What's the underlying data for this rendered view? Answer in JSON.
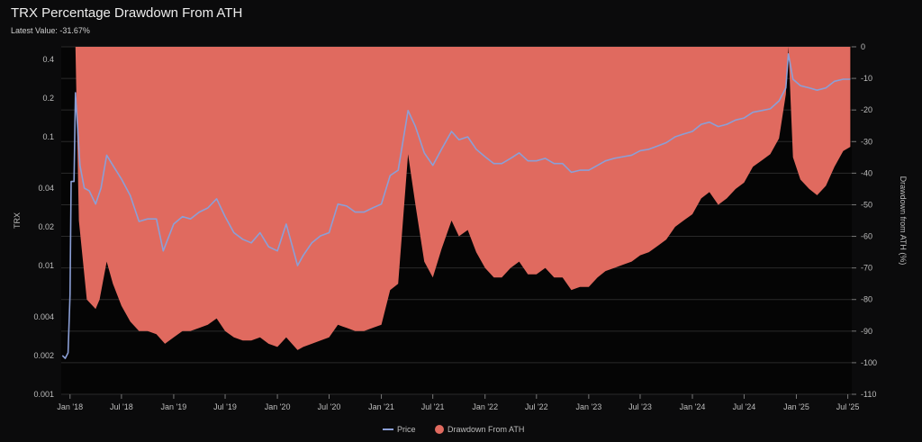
{
  "title": "TRX Percentage Drawdown From ATH",
  "subtitle": "Latest Value: -31.67%",
  "chart_data": {
    "type": "area",
    "x_axis": {
      "type": "time",
      "range": [
        "2017-12-01",
        "2025-07-15"
      ],
      "tick_labels": [
        "Jan '18",
        "Jul '18",
        "Jan '19",
        "Jul '19",
        "Jan '20",
        "Jul '20",
        "Jan '21",
        "Jul '21",
        "Jan '22",
        "Jul '22",
        "Jan '23",
        "Jul '23",
        "Jan '24",
        "Jul '24",
        "Jan '25",
        "Jul '25"
      ]
    },
    "left_axis": {
      "label": "TRX",
      "scale": "log",
      "range": [
        0.001,
        0.5
      ],
      "tick_labels": [
        "0.001",
        "0.002",
        "0.004",
        "0.01",
        "0.02",
        "0.04",
        "0.1",
        "0.2",
        "0.4"
      ]
    },
    "right_axis": {
      "label": "Drawdown from ATH (%)",
      "range": [
        -110,
        0
      ],
      "tick_labels": [
        "0",
        "-10",
        "-20",
        "-30",
        "-40",
        "-50",
        "-60",
        "-70",
        "-80",
        "-90",
        "-100",
        "-110"
      ]
    },
    "series": [
      {
        "name": "Price",
        "axis": "left",
        "color": "#8b9fd6",
        "points": [
          [
            "2017-12-05",
            0.002
          ],
          [
            "2017-12-15",
            0.0019
          ],
          [
            "2017-12-25",
            0.0021
          ],
          [
            "2018-01-01",
            0.006
          ],
          [
            "2018-01-05",
            0.045
          ],
          [
            "2018-01-15",
            0.045
          ],
          [
            "2018-01-20",
            0.22
          ],
          [
            "2018-02-05",
            0.06
          ],
          [
            "2018-02-20",
            0.04
          ],
          [
            "2018-03-10",
            0.038
          ],
          [
            "2018-04-01",
            0.03
          ],
          [
            "2018-04-20",
            0.04
          ],
          [
            "2018-05-10",
            0.072
          ],
          [
            "2018-06-01",
            0.06
          ],
          [
            "2018-07-01",
            0.047
          ],
          [
            "2018-08-01",
            0.035
          ],
          [
            "2018-09-01",
            0.022
          ],
          [
            "2018-10-01",
            0.023
          ],
          [
            "2018-11-01",
            0.023
          ],
          [
            "2018-11-25",
            0.013
          ],
          [
            "2019-01-01",
            0.021
          ],
          [
            "2019-02-01",
            0.024
          ],
          [
            "2019-03-01",
            0.023
          ],
          [
            "2019-04-01",
            0.026
          ],
          [
            "2019-05-01",
            0.028
          ],
          [
            "2019-06-01",
            0.033
          ],
          [
            "2019-07-01",
            0.024
          ],
          [
            "2019-08-01",
            0.018
          ],
          [
            "2019-09-01",
            0.016
          ],
          [
            "2019-10-01",
            0.015
          ],
          [
            "2019-11-01",
            0.018
          ],
          [
            "2019-12-01",
            0.014
          ],
          [
            "2020-01-01",
            0.013
          ],
          [
            "2020-02-01",
            0.021
          ],
          [
            "2020-03-12",
            0.01
          ],
          [
            "2020-04-01",
            0.012
          ],
          [
            "2020-05-01",
            0.015
          ],
          [
            "2020-06-01",
            0.017
          ],
          [
            "2020-07-01",
            0.018
          ],
          [
            "2020-08-01",
            0.03
          ],
          [
            "2020-09-01",
            0.029
          ],
          [
            "2020-10-01",
            0.026
          ],
          [
            "2020-11-01",
            0.026
          ],
          [
            "2020-12-01",
            0.028
          ],
          [
            "2021-01-01",
            0.03
          ],
          [
            "2021-02-01",
            0.05
          ],
          [
            "2021-03-01",
            0.055
          ],
          [
            "2021-04-05",
            0.16
          ],
          [
            "2021-05-01",
            0.12
          ],
          [
            "2021-06-01",
            0.075
          ],
          [
            "2021-07-01",
            0.06
          ],
          [
            "2021-08-01",
            0.08
          ],
          [
            "2021-09-05",
            0.11
          ],
          [
            "2021-10-01",
            0.095
          ],
          [
            "2021-11-01",
            0.1
          ],
          [
            "2021-12-01",
            0.08
          ],
          [
            "2022-01-01",
            0.07
          ],
          [
            "2022-02-01",
            0.062
          ],
          [
            "2022-03-01",
            0.062
          ],
          [
            "2022-04-01",
            0.068
          ],
          [
            "2022-05-01",
            0.075
          ],
          [
            "2022-06-01",
            0.065
          ],
          [
            "2022-07-01",
            0.065
          ],
          [
            "2022-08-01",
            0.068
          ],
          [
            "2022-09-01",
            0.062
          ],
          [
            "2022-10-01",
            0.062
          ],
          [
            "2022-11-01",
            0.053
          ],
          [
            "2022-12-01",
            0.055
          ],
          [
            "2023-01-01",
            0.055
          ],
          [
            "2023-02-01",
            0.06
          ],
          [
            "2023-03-01",
            0.065
          ],
          [
            "2023-04-01",
            0.068
          ],
          [
            "2023-05-01",
            0.07
          ],
          [
            "2023-06-01",
            0.072
          ],
          [
            "2023-07-01",
            0.078
          ],
          [
            "2023-08-01",
            0.08
          ],
          [
            "2023-09-01",
            0.085
          ],
          [
            "2023-10-01",
            0.09
          ],
          [
            "2023-11-01",
            0.1
          ],
          [
            "2023-12-01",
            0.105
          ],
          [
            "2024-01-01",
            0.11
          ],
          [
            "2024-02-01",
            0.125
          ],
          [
            "2024-03-01",
            0.13
          ],
          [
            "2024-04-01",
            0.12
          ],
          [
            "2024-05-01",
            0.125
          ],
          [
            "2024-06-01",
            0.135
          ],
          [
            "2024-07-01",
            0.14
          ],
          [
            "2024-08-01",
            0.155
          ],
          [
            "2024-09-01",
            0.16
          ],
          [
            "2024-10-01",
            0.165
          ],
          [
            "2024-11-01",
            0.19
          ],
          [
            "2024-11-25",
            0.24
          ],
          [
            "2024-12-04",
            0.44
          ],
          [
            "2024-12-20",
            0.28
          ],
          [
            "2025-01-15",
            0.25
          ],
          [
            "2025-02-15",
            0.24
          ],
          [
            "2025-03-15",
            0.23
          ],
          [
            "2025-04-15",
            0.24
          ],
          [
            "2025-05-15",
            0.27
          ],
          [
            "2025-06-15",
            0.28
          ],
          [
            "2025-07-10",
            0.28
          ]
        ]
      },
      {
        "name": "Drawdown From ATH",
        "axis": "right",
        "color": "#e06a5f",
        "points": [
          [
            "2017-12-01",
            0
          ],
          [
            "2018-01-05",
            0
          ],
          [
            "2018-01-20",
            0
          ],
          [
            "2018-02-01",
            -55
          ],
          [
            "2018-03-01",
            -80
          ],
          [
            "2018-04-01",
            -83
          ],
          [
            "2018-04-15",
            -80
          ],
          [
            "2018-05-10",
            -68
          ],
          [
            "2018-06-01",
            -75
          ],
          [
            "2018-07-01",
            -82
          ],
          [
            "2018-08-01",
            -87
          ],
          [
            "2018-09-01",
            -90
          ],
          [
            "2018-10-01",
            -90
          ],
          [
            "2018-11-01",
            -91
          ],
          [
            "2018-12-01",
            -94
          ],
          [
            "2019-01-01",
            -92
          ],
          [
            "2019-02-01",
            -90
          ],
          [
            "2019-03-01",
            -90
          ],
          [
            "2019-04-01",
            -89
          ],
          [
            "2019-05-01",
            -88
          ],
          [
            "2019-06-01",
            -86
          ],
          [
            "2019-07-01",
            -90
          ],
          [
            "2019-08-01",
            -92
          ],
          [
            "2019-09-01",
            -93
          ],
          [
            "2019-10-01",
            -93
          ],
          [
            "2019-11-01",
            -92
          ],
          [
            "2019-12-01",
            -94
          ],
          [
            "2020-01-01",
            -95
          ],
          [
            "2020-02-01",
            -92
          ],
          [
            "2020-03-12",
            -96
          ],
          [
            "2020-04-01",
            -95
          ],
          [
            "2020-05-01",
            -94
          ],
          [
            "2020-06-01",
            -93
          ],
          [
            "2020-07-01",
            -92
          ],
          [
            "2020-08-01",
            -88
          ],
          [
            "2020-09-01",
            -89
          ],
          [
            "2020-10-01",
            -90
          ],
          [
            "2020-11-01",
            -90
          ],
          [
            "2020-12-01",
            -89
          ],
          [
            "2021-01-01",
            -88
          ],
          [
            "2021-02-01",
            -77
          ],
          [
            "2021-03-01",
            -75
          ],
          [
            "2021-04-05",
            -34
          ],
          [
            "2021-05-01",
            -50
          ],
          [
            "2021-06-01",
            -68
          ],
          [
            "2021-07-01",
            -73
          ],
          [
            "2021-08-01",
            -64
          ],
          [
            "2021-09-05",
            -55
          ],
          [
            "2021-10-01",
            -60
          ],
          [
            "2021-11-01",
            -58
          ],
          [
            "2021-12-01",
            -65
          ],
          [
            "2022-01-01",
            -70
          ],
          [
            "2022-02-01",
            -73
          ],
          [
            "2022-03-01",
            -73
          ],
          [
            "2022-04-01",
            -70
          ],
          [
            "2022-05-01",
            -68
          ],
          [
            "2022-06-01",
            -72
          ],
          [
            "2022-07-01",
            -72
          ],
          [
            "2022-08-01",
            -70
          ],
          [
            "2022-09-01",
            -73
          ],
          [
            "2022-10-01",
            -73
          ],
          [
            "2022-11-01",
            -77
          ],
          [
            "2022-12-01",
            -76
          ],
          [
            "2023-01-01",
            -76
          ],
          [
            "2023-02-01",
            -73
          ],
          [
            "2023-03-01",
            -71
          ],
          [
            "2023-04-01",
            -70
          ],
          [
            "2023-05-01",
            -69
          ],
          [
            "2023-06-01",
            -68
          ],
          [
            "2023-07-01",
            -66
          ],
          [
            "2023-08-01",
            -65
          ],
          [
            "2023-09-01",
            -63
          ],
          [
            "2023-10-01",
            -61
          ],
          [
            "2023-11-01",
            -57
          ],
          [
            "2023-12-01",
            -55
          ],
          [
            "2024-01-01",
            -53
          ],
          [
            "2024-02-01",
            -48
          ],
          [
            "2024-03-01",
            -46
          ],
          [
            "2024-04-01",
            -50
          ],
          [
            "2024-05-01",
            -48
          ],
          [
            "2024-06-01",
            -45
          ],
          [
            "2024-07-01",
            -43
          ],
          [
            "2024-08-01",
            -38
          ],
          [
            "2024-09-01",
            -36
          ],
          [
            "2024-10-01",
            -34
          ],
          [
            "2024-11-01",
            -29
          ],
          [
            "2024-11-25",
            -15
          ],
          [
            "2024-12-04",
            0
          ],
          [
            "2024-12-20",
            -35
          ],
          [
            "2025-01-15",
            -42
          ],
          [
            "2025-02-15",
            -45
          ],
          [
            "2025-03-15",
            -47
          ],
          [
            "2025-04-15",
            -44
          ],
          [
            "2025-05-15",
            -38
          ],
          [
            "2025-06-15",
            -33
          ],
          [
            "2025-07-10",
            -31.67
          ]
        ]
      }
    ],
    "legend": {
      "position": "bottom-center"
    },
    "grid": true
  }
}
